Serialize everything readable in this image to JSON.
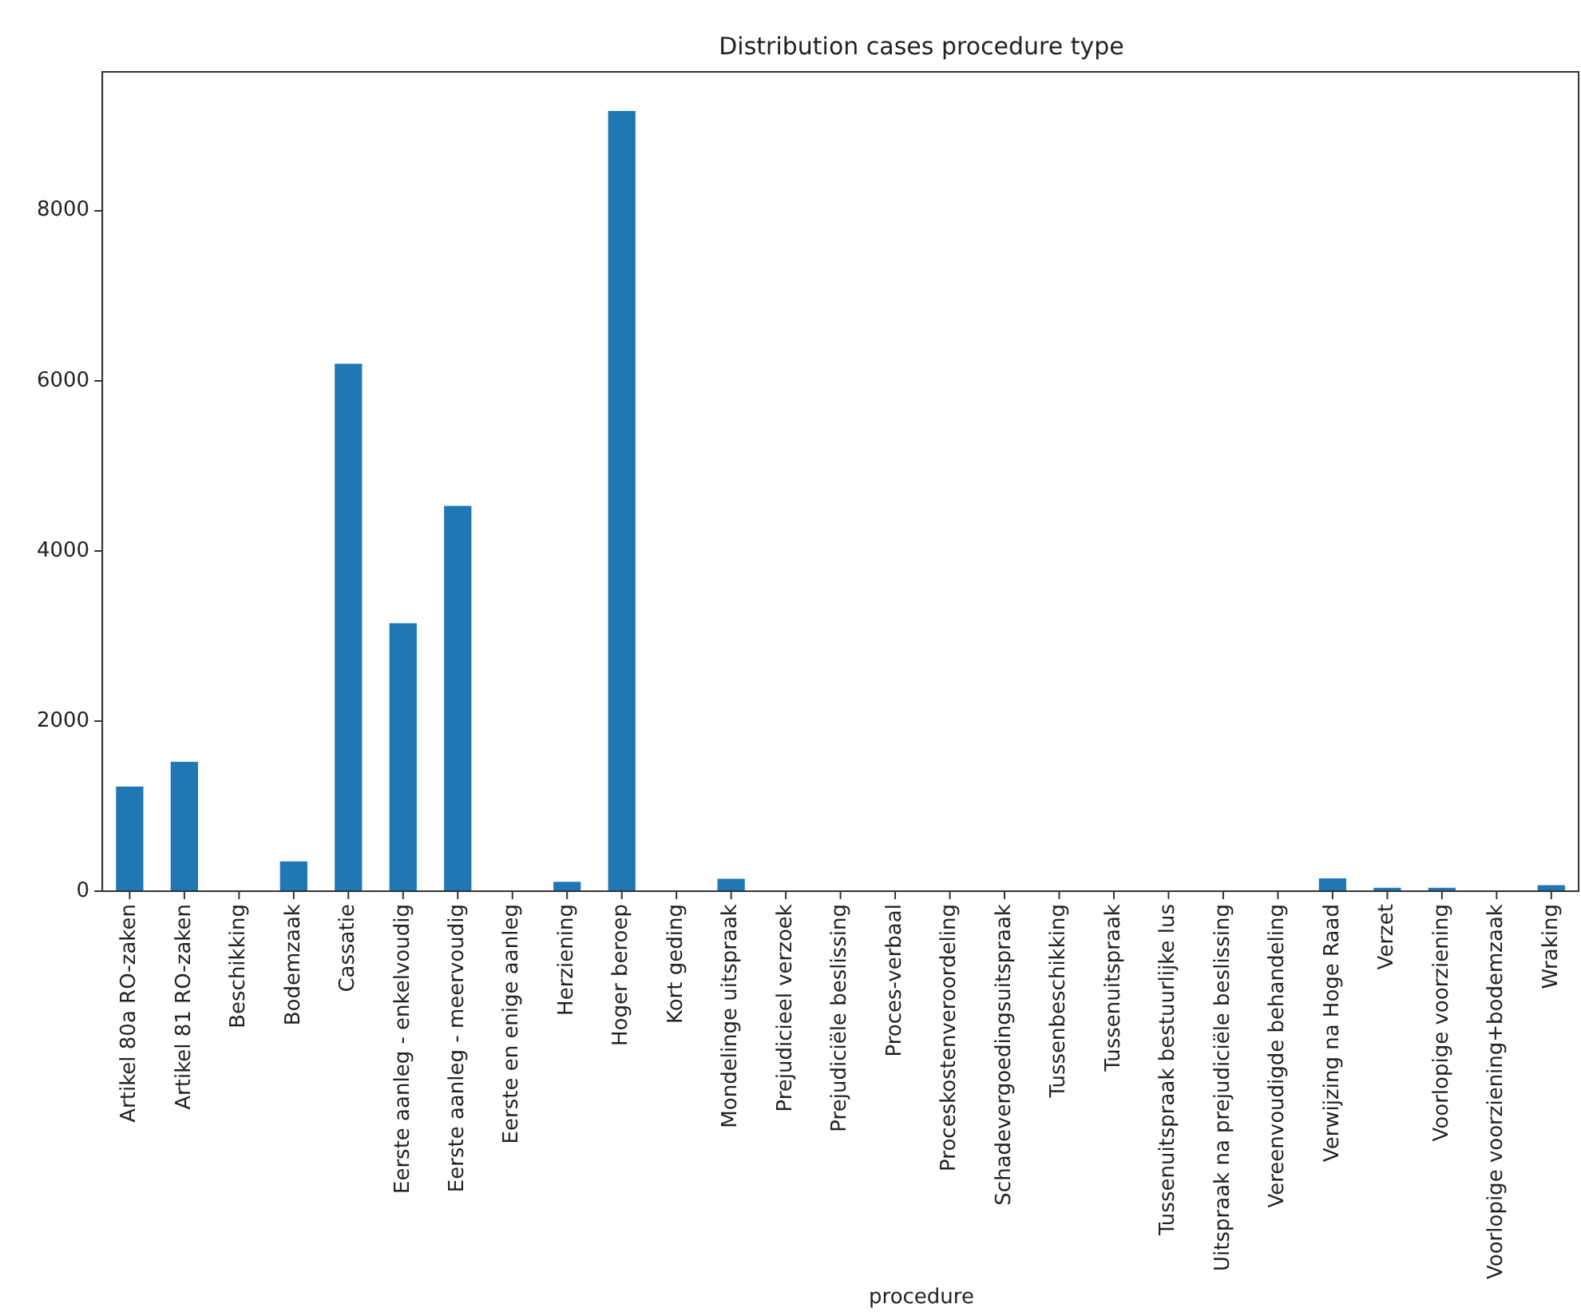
{
  "chart_data": {
    "type": "bar",
    "title": "Distribution cases procedure type",
    "xlabel": "procedure",
    "categories": [
      "Artikel 80a RO-zaken",
      "Artikel 81 RO-zaken",
      "Beschikking",
      "Bodemzaak",
      "Cassatie",
      "Eerste aanleg - enkelvoudig",
      "Eerste aanleg - meervoudig",
      "Eerste en enige aanleg",
      "Herziening",
      "Hoger beroep",
      "Kort geding",
      "Mondelinge uitspraak",
      "Prejudicieel verzoek",
      "Prejudiciële beslissing",
      "Proces-verbaal",
      "Proceskostenveroordeling",
      "Schadevergoedingsuitspraak",
      "Tussenbeschikking",
      "Tussenuitspraak",
      "Tussenuitspraak bestuurlijke lus",
      "Uitspraak na prejudiciële beslissing",
      "Vereenvoudigde behandeling",
      "Verwijzing na Hoge Raad",
      "Verzet",
      "Voorlopige voorziening",
      "Voorlopige voorziening+bodemzaak",
      "Wraking"
    ],
    "values": [
      1230,
      1520,
      0,
      350,
      6200,
      3150,
      4530,
      0,
      110,
      9170,
      0,
      145,
      0,
      0,
      0,
      0,
      0,
      0,
      0,
      0,
      0,
      0,
      150,
      40,
      40,
      0,
      70
    ],
    "color": "#1f77b4",
    "ylim": [
      0,
      9630
    ],
    "yticks": [
      0,
      2000,
      4000,
      6000,
      8000
    ],
    "grid": false,
    "legend": false
  }
}
